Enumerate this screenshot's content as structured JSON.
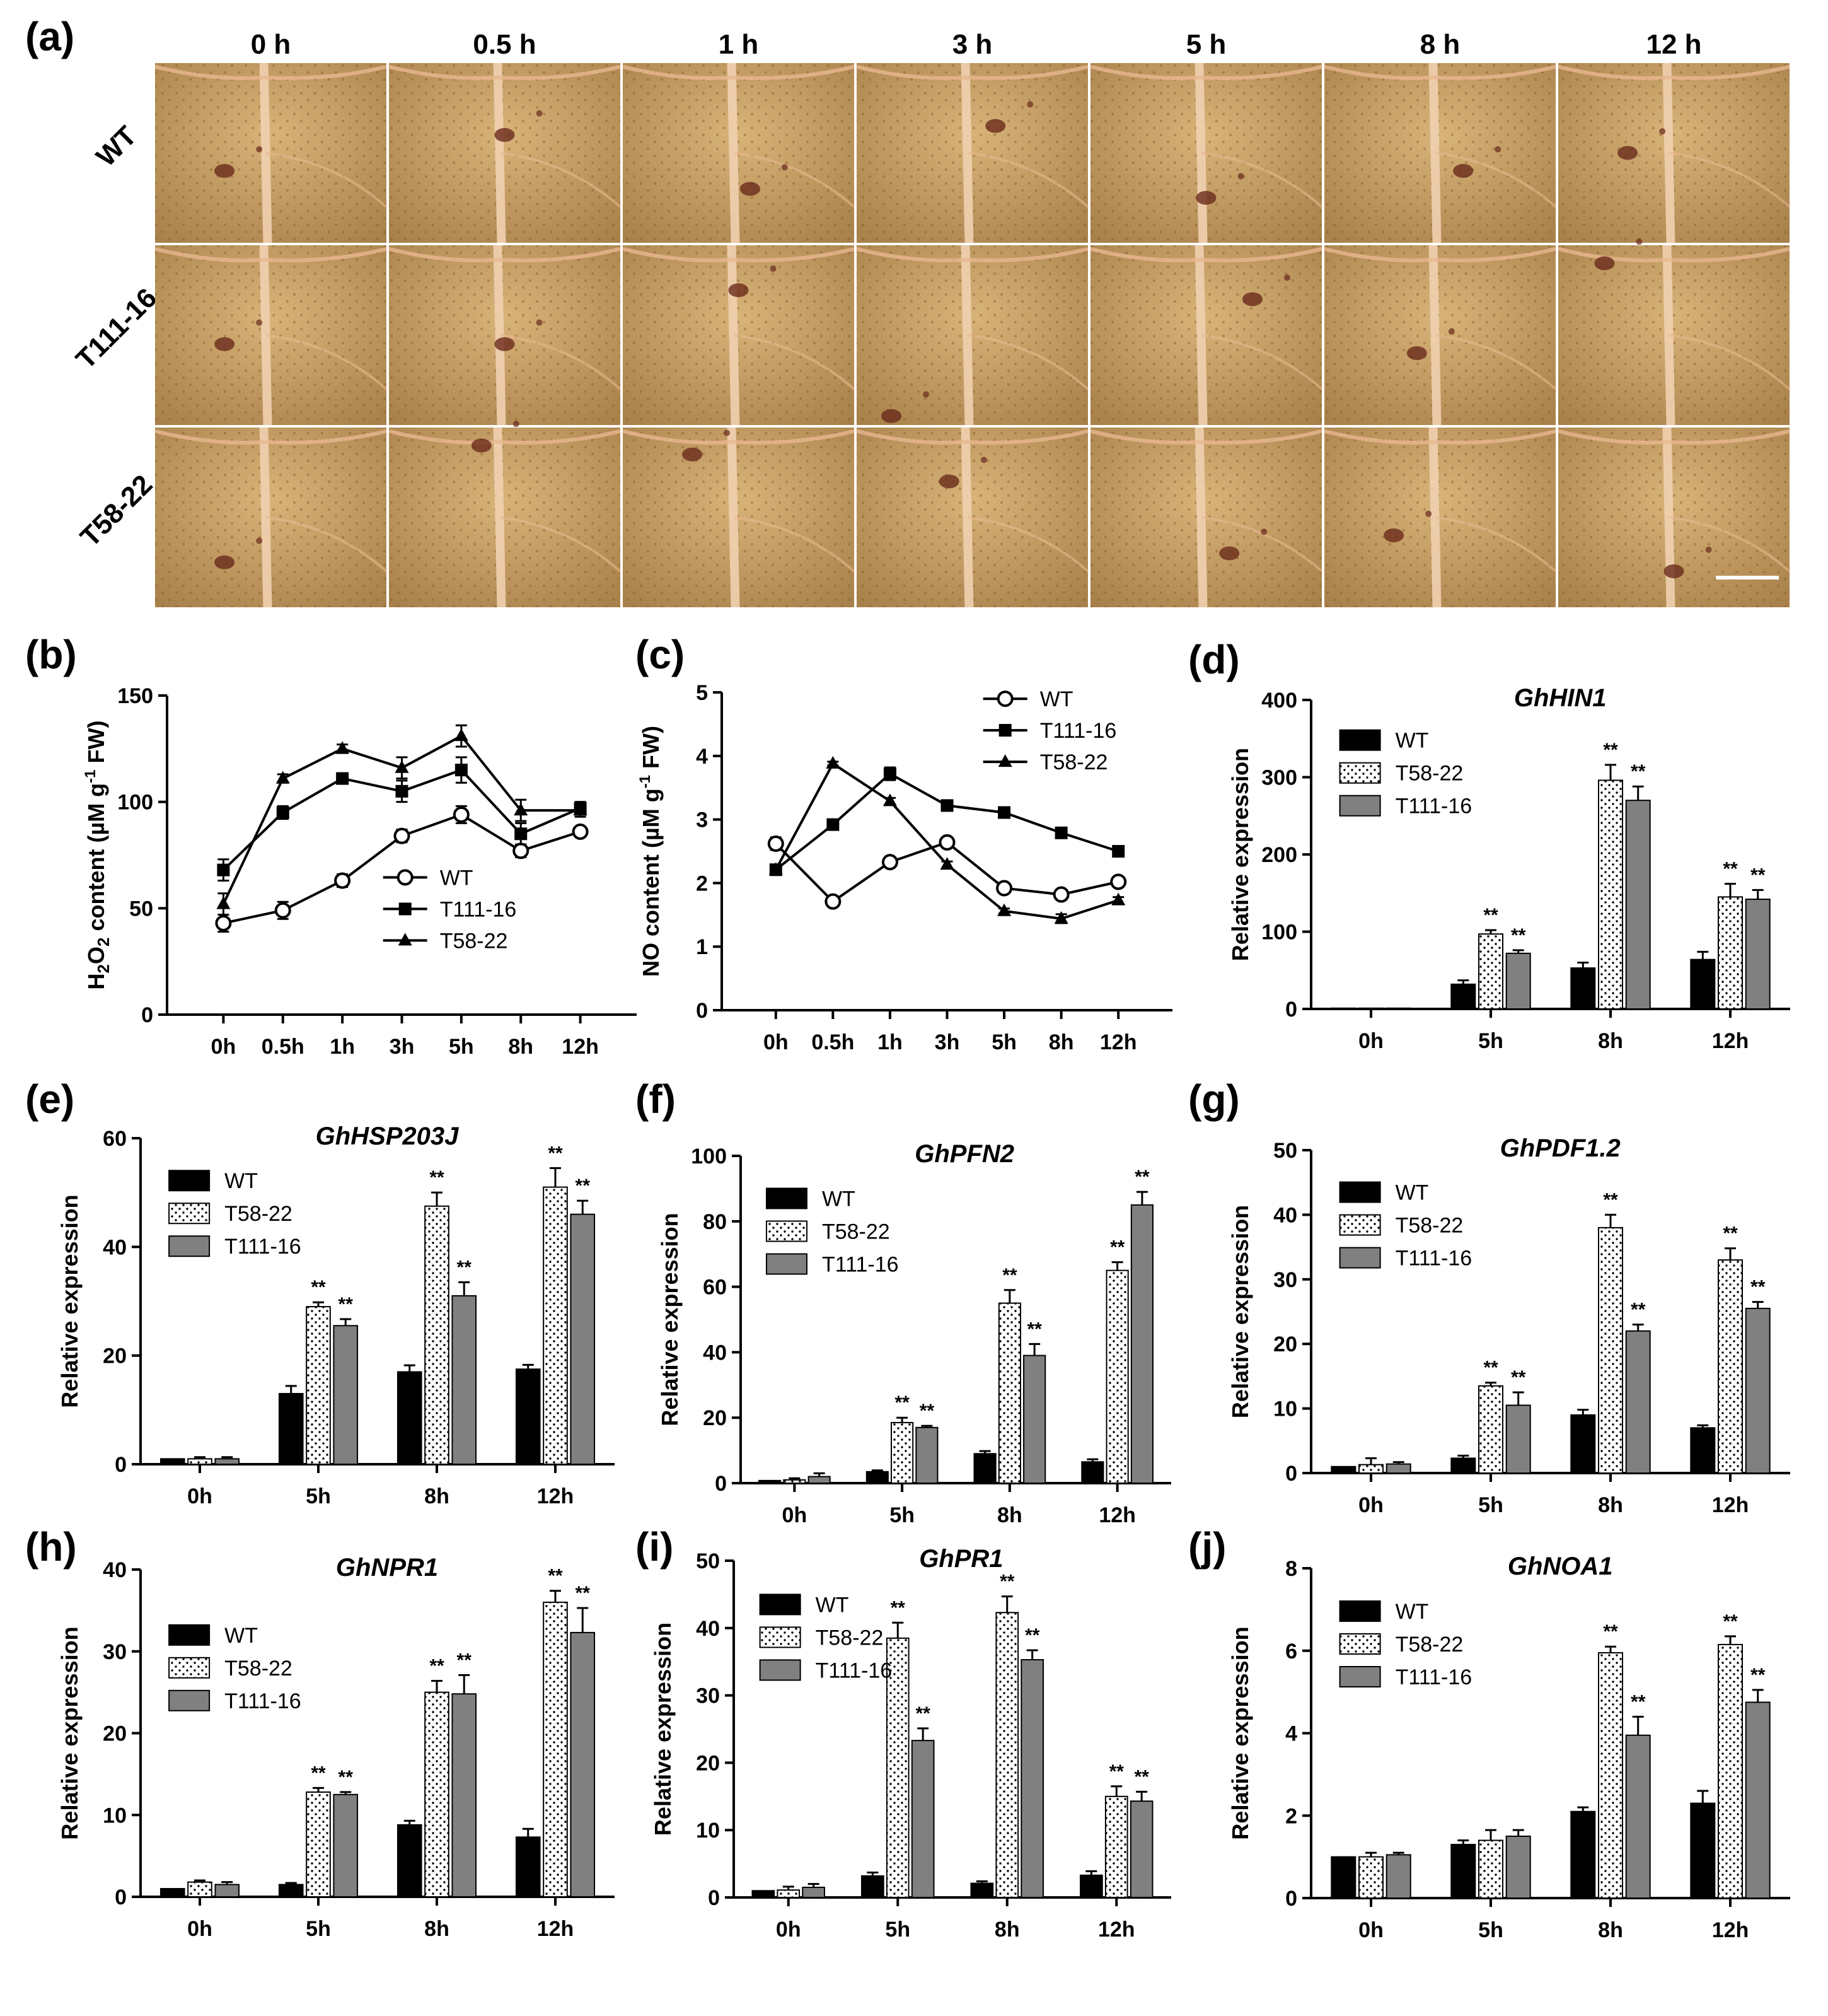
{
  "panel_a": {
    "label": "(a)",
    "columns": [
      "0 h",
      "0.5 h",
      "1 h",
      "3 h",
      "5 h",
      "8 h",
      "12 h"
    ],
    "rows": [
      "WT",
      "T111-16",
      "T58-22"
    ],
    "colors": {
      "leaf": "#c8a064",
      "leaf_dark": "#a87c46",
      "vein": "#e8b890",
      "stain": "#6a2a1c"
    }
  },
  "series_colors": {
    "WT": "#000000",
    "T58-22": "#ffffff",
    "T111-16": "#808080"
  },
  "chart_data": [
    {
      "id": "b",
      "label": "(b)",
      "type": "line",
      "title": "",
      "ylabel_parts": [
        "H",
        "2",
        "O",
        "2",
        " content (µM g",
        "-1",
        " FW)"
      ],
      "ylabel": "H2O2 content (µM g-1 FW)",
      "xlabel": "",
      "categories": [
        "0h",
        "0.5h",
        "1h",
        "3h",
        "5h",
        "8h",
        "12h"
      ],
      "ylim": [
        0,
        150
      ],
      "yticks": [
        0,
        50,
        100,
        150
      ],
      "legend_position": "bottom-right",
      "series": [
        {
          "name": "WT",
          "marker": "open-circle",
          "values": [
            43,
            49,
            63,
            84,
            94,
            77,
            86
          ],
          "errors": [
            4,
            4,
            3,
            3,
            4,
            3,
            2
          ]
        },
        {
          "name": "T111-16",
          "marker": "square",
          "values": [
            68,
            95,
            111,
            105,
            115,
            85,
            97
          ],
          "errors": [
            5,
            3,
            2,
            5,
            6,
            5,
            3
          ]
        },
        {
          "name": "T58-22",
          "marker": "triangle",
          "values": [
            52,
            111,
            125,
            116,
            131,
            96,
            96
          ],
          "errors": [
            5,
            2,
            2,
            5,
            5,
            5,
            3
          ]
        }
      ]
    },
    {
      "id": "c",
      "label": "(c)",
      "type": "line",
      "title": "",
      "ylabel_parts": [
        "NO content (µM g",
        "-1",
        " FW)"
      ],
      "ylabel": "NO content (µM g-1 FW)",
      "xlabel": "",
      "categories": [
        "0h",
        "0.5h",
        "1h",
        "3h",
        "5h",
        "8h",
        "12h"
      ],
      "ylim": [
        0,
        5
      ],
      "yticks": [
        0,
        1,
        2,
        3,
        4,
        5
      ],
      "legend_position": "top-right",
      "series": [
        {
          "name": "WT",
          "marker": "open-circle",
          "values": [
            2.62,
            1.71,
            2.33,
            2.64,
            1.92,
            1.82,
            2.02
          ],
          "errors": [
            0.1,
            0.04,
            0.05,
            0.04,
            0.05,
            0.05,
            0.05
          ]
        },
        {
          "name": "T111-16",
          "marker": "square",
          "values": [
            2.21,
            2.92,
            3.72,
            3.22,
            3.11,
            2.79,
            2.5
          ],
          "errors": [
            0.05,
            0.04,
            0.1,
            0.05,
            0.04,
            0.05,
            0.05
          ]
        },
        {
          "name": "T58-22",
          "marker": "triangle",
          "values": [
            2.21,
            3.88,
            3.29,
            2.29,
            1.56,
            1.44,
            1.73
          ],
          "errors": [
            0.05,
            0.03,
            0.05,
            0.05,
            0.04,
            0.07,
            0.05
          ]
        }
      ]
    },
    {
      "id": "d",
      "label": "(d)",
      "type": "bar",
      "title": "GhHIN1",
      "ylabel": "Relative expression",
      "xlabel": "",
      "categories": [
        "0h",
        "5h",
        "8h",
        "12h"
      ],
      "ylim": [
        0,
        400
      ],
      "yticks": [
        0,
        100,
        200,
        300,
        400
      ],
      "legend_position": "top-left",
      "series": [
        {
          "name": "WT",
          "values": [
            1,
            32,
            53,
            64
          ],
          "errors": [
            0,
            5,
            7,
            10
          ],
          "sig": [
            "",
            "",
            "",
            ""
          ]
        },
        {
          "name": "T58-22",
          "values": [
            1,
            97,
            296,
            145
          ],
          "errors": [
            0,
            5,
            20,
            17
          ],
          "sig": [
            "",
            "**",
            "**",
            "**"
          ]
        },
        {
          "name": "T111-16",
          "values": [
            1,
            72,
            270,
            142
          ],
          "errors": [
            0,
            4,
            18,
            12
          ],
          "sig": [
            "",
            "**",
            "**",
            "**"
          ]
        }
      ]
    },
    {
      "id": "e",
      "label": "(e)",
      "type": "bar",
      "title": "GhHSP203J",
      "ylabel": "Relative expression",
      "xlabel": "",
      "categories": [
        "0h",
        "5h",
        "8h",
        "12h"
      ],
      "ylim": [
        0,
        60
      ],
      "yticks": [
        0,
        20,
        40,
        60
      ],
      "legend_position": "top-left",
      "series": [
        {
          "name": "WT",
          "values": [
            1,
            13,
            17,
            17.5
          ],
          "errors": [
            0,
            1.4,
            1.2,
            0.8
          ],
          "sig": [
            "",
            "",
            "",
            ""
          ]
        },
        {
          "name": "T58-22",
          "values": [
            1,
            29,
            47.5,
            51
          ],
          "errors": [
            0.3,
            0.8,
            2.5,
            3.5
          ],
          "sig": [
            "",
            "**",
            "**",
            "**"
          ]
        },
        {
          "name": "T111-16",
          "values": [
            1,
            25.5,
            31,
            46
          ],
          "errors": [
            0.3,
            1.2,
            2.5,
            2.5
          ],
          "sig": [
            "",
            "**",
            "**",
            "**"
          ]
        }
      ]
    },
    {
      "id": "f",
      "label": "(f)",
      "type": "bar",
      "title": "GhPFN2",
      "ylabel": "Relative expression",
      "xlabel": "",
      "categories": [
        "0h",
        "5h",
        "8h",
        "12h"
      ],
      "ylim": [
        0,
        100
      ],
      "yticks": [
        0,
        20,
        40,
        60,
        80,
        100
      ],
      "legend_position": "top-left",
      "series": [
        {
          "name": "WT",
          "values": [
            0.8,
            3.5,
            9,
            6.5
          ],
          "errors": [
            0,
            0.4,
            0.8,
            0.8
          ],
          "sig": [
            "",
            "",
            "",
            ""
          ]
        },
        {
          "name": "T58-22",
          "values": [
            1,
            18.5,
            55,
            65
          ],
          "errors": [
            0.5,
            1.5,
            4,
            2.5
          ],
          "sig": [
            "",
            "**",
            "**",
            "**"
          ]
        },
        {
          "name": "T111-16",
          "values": [
            2,
            17,
            39,
            85
          ],
          "errors": [
            1,
            0.5,
            3.5,
            4
          ],
          "sig": [
            "",
            "**",
            "**",
            "**"
          ]
        }
      ]
    },
    {
      "id": "g",
      "label": "(g)",
      "type": "bar",
      "title": "GhPDF1.2",
      "ylabel": "Relative expression",
      "xlabel": "",
      "categories": [
        "0h",
        "5h",
        "8h",
        "12h"
      ],
      "ylim": [
        0,
        50
      ],
      "yticks": [
        0,
        10,
        20,
        30,
        40,
        50
      ],
      "legend_position": "top-left",
      "series": [
        {
          "name": "WT",
          "values": [
            1,
            2.3,
            9,
            7
          ],
          "errors": [
            0,
            0.4,
            0.8,
            0.4
          ],
          "sig": [
            "",
            "",
            "",
            ""
          ]
        },
        {
          "name": "T58-22",
          "values": [
            1.3,
            13.5,
            38,
            33
          ],
          "errors": [
            1,
            0.5,
            2,
            1.8
          ],
          "sig": [
            "",
            "**",
            "**",
            "**"
          ]
        },
        {
          "name": "T111-16",
          "values": [
            1.4,
            10.5,
            22,
            25.5
          ],
          "errors": [
            0.3,
            2,
            1,
            1
          ],
          "sig": [
            "",
            "**",
            "**",
            "**"
          ]
        }
      ]
    },
    {
      "id": "h",
      "label": "(h)",
      "type": "bar",
      "title": "GhNPR1",
      "ylabel": "Relative expression",
      "xlabel": "",
      "categories": [
        "0h",
        "5h",
        "8h",
        "12h"
      ],
      "ylim": [
        0,
        40
      ],
      "yticks": [
        0,
        10,
        20,
        30,
        40
      ],
      "legend_position": "middle-left",
      "series": [
        {
          "name": "WT",
          "values": [
            1,
            1.5,
            8.8,
            7.3
          ],
          "errors": [
            0,
            0.2,
            0.5,
            1
          ],
          "sig": [
            "",
            "",
            "",
            ""
          ]
        },
        {
          "name": "T58-22",
          "values": [
            1.8,
            12.8,
            25,
            36
          ],
          "errors": [
            0.2,
            0.5,
            1.4,
            1.4
          ],
          "sig": [
            "",
            "**",
            "**",
            "**"
          ]
        },
        {
          "name": "T111-16",
          "values": [
            1.5,
            12.5,
            24.8,
            32.3
          ],
          "errors": [
            0.3,
            0.3,
            2.3,
            3
          ],
          "sig": [
            "",
            "**",
            "**",
            "**"
          ]
        }
      ]
    },
    {
      "id": "i",
      "label": "(i)",
      "type": "bar",
      "title": "GhPR1",
      "ylabel": "Relative expression",
      "xlabel": "",
      "categories": [
        "0h",
        "5h",
        "8h",
        "12h"
      ],
      "ylim": [
        0,
        50
      ],
      "yticks": [
        0,
        10,
        20,
        30,
        40,
        50
      ],
      "legend_position": "top-left",
      "series": [
        {
          "name": "WT",
          "values": [
            1,
            3.2,
            2.1,
            3.3
          ],
          "errors": [
            0,
            0.5,
            0.3,
            0.6
          ],
          "sig": [
            "",
            "",
            "",
            ""
          ]
        },
        {
          "name": "T58-22",
          "values": [
            1.1,
            38.5,
            42.3,
            15
          ],
          "errors": [
            0.5,
            2.3,
            2.4,
            1.5
          ],
          "sig": [
            "",
            "**",
            "**",
            "**"
          ]
        },
        {
          "name": "T111-16",
          "values": [
            1.5,
            23.3,
            35.3,
            14.3
          ],
          "errors": [
            0.5,
            1.8,
            1.4,
            1.4
          ],
          "sig": [
            "",
            "**",
            "**",
            "**"
          ]
        }
      ]
    },
    {
      "id": "j",
      "label": "(j)",
      "type": "bar",
      "title": "GhNOA1",
      "ylabel": "Relative expression",
      "xlabel": "",
      "categories": [
        "0h",
        "5h",
        "8h",
        "12h"
      ],
      "ylim": [
        0,
        8
      ],
      "yticks": [
        0,
        2,
        4,
        6,
        8
      ],
      "legend_position": "top-left",
      "series": [
        {
          "name": "WT",
          "values": [
            1,
            1.3,
            2.1,
            2.3
          ],
          "errors": [
            0,
            0.1,
            0.1,
            0.3
          ],
          "sig": [
            "",
            "",
            "",
            ""
          ]
        },
        {
          "name": "T58-22",
          "values": [
            1,
            1.4,
            5.95,
            6.15
          ],
          "errors": [
            0.1,
            0.25,
            0.15,
            0.2
          ],
          "sig": [
            "",
            "",
            "**",
            "**"
          ]
        },
        {
          "name": "T111-16",
          "values": [
            1.05,
            1.5,
            3.95,
            4.75
          ],
          "errors": [
            0.05,
            0.15,
            0.45,
            0.3
          ],
          "sig": [
            "",
            "",
            "**",
            "**"
          ]
        }
      ]
    }
  ]
}
